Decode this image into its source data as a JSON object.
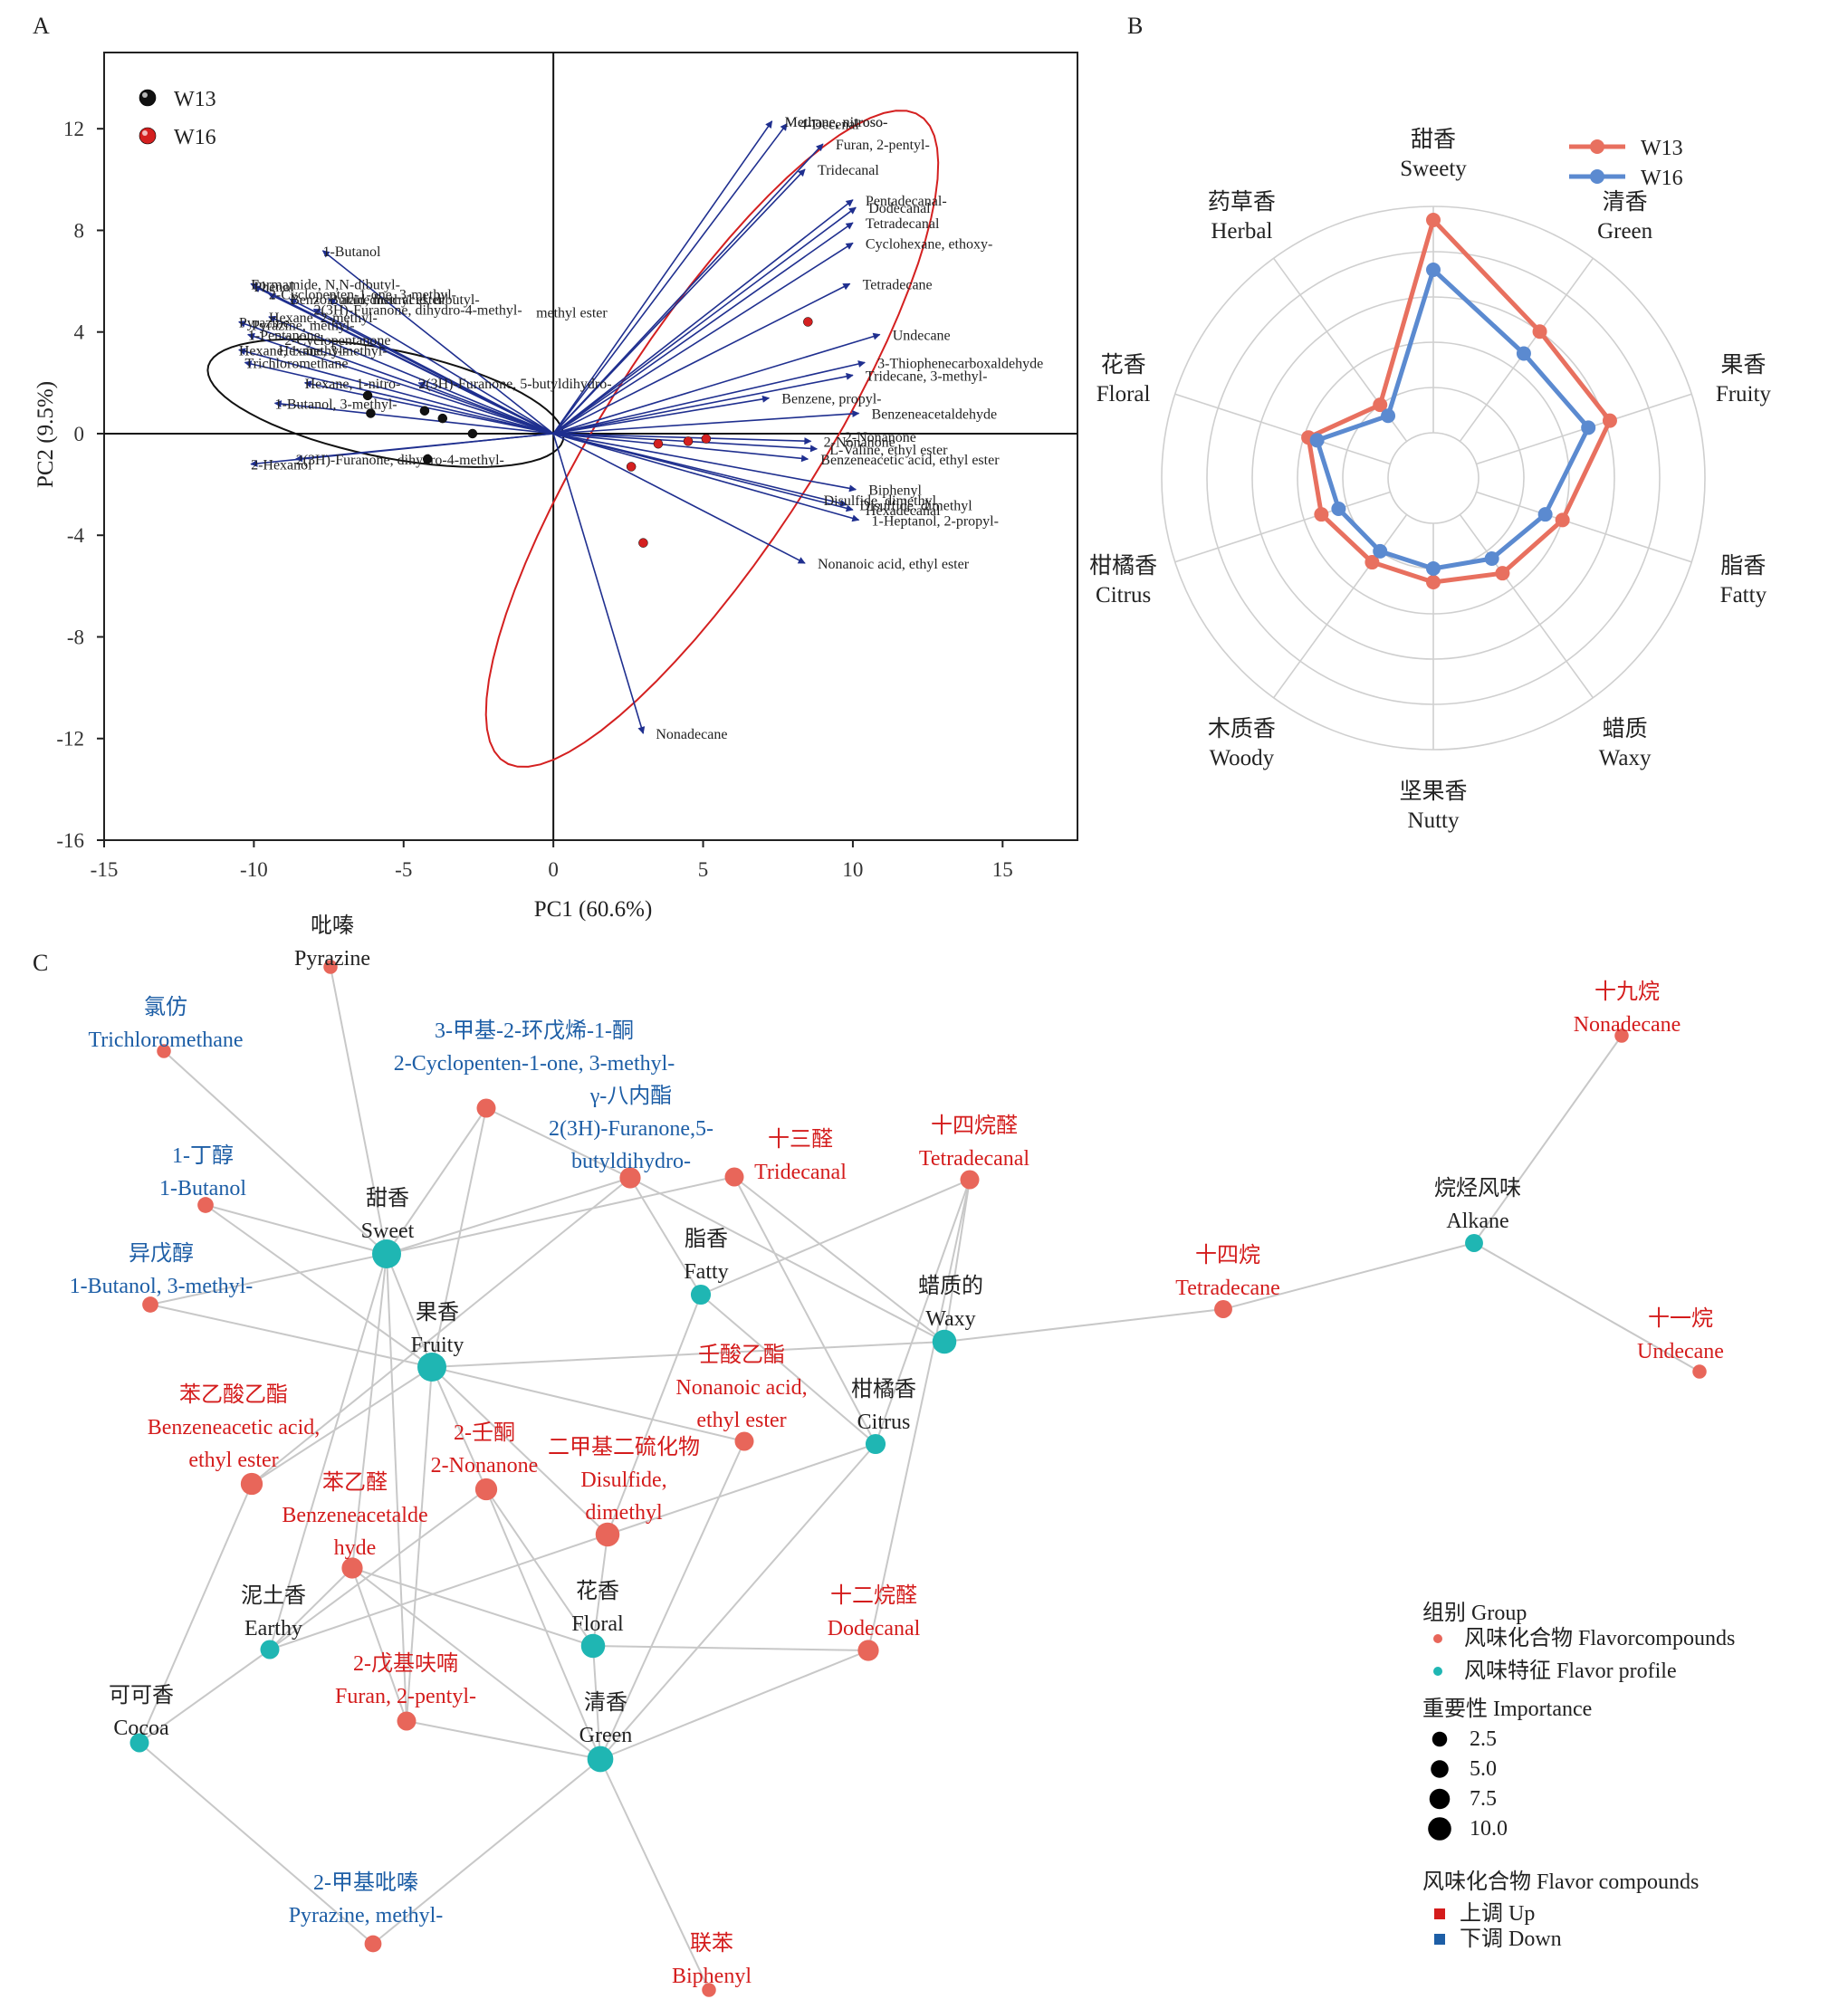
{
  "panels": {
    "a": "A",
    "b": "B",
    "c": "C"
  },
  "chart_data": [
    {
      "type": "scatter",
      "subtype": "pca-biplot",
      "xlabel": "PC1 (60.6%)",
      "ylabel": "PC2 (9.5%)",
      "xlim": [
        -15,
        17.5
      ],
      "ylim": [
        -16,
        15
      ],
      "xticks": [
        -15,
        -10,
        -5,
        0,
        5,
        10,
        15
      ],
      "yticks": [
        -16,
        -12,
        -8,
        -4,
        0,
        4,
        8,
        12
      ],
      "legend": [
        {
          "name": "W13",
          "color": "#111111"
        },
        {
          "name": "W16",
          "color": "#d42020"
        }
      ],
      "series": [
        {
          "name": "W13",
          "points": [
            [
              -6.2,
              1.5
            ],
            [
              -6.1,
              0.8
            ],
            [
              -4.3,
              0.9
            ],
            [
              -3.7,
              0.6
            ],
            [
              -2.7,
              0.0
            ],
            [
              -4.2,
              -1.0
            ]
          ]
        },
        {
          "name": "W16",
          "points": [
            [
              8.5,
              4.4
            ],
            [
              3.5,
              -0.4
            ],
            [
              4.5,
              -0.3
            ],
            [
              5.1,
              -0.2
            ],
            [
              2.6,
              -1.3
            ],
            [
              3.0,
              -4.3
            ]
          ]
        }
      ],
      "vectors": [
        {
          "label": "Methane, nitroso-",
          "x": 7.3,
          "y": 12.3
        },
        {
          "label": "4-Decenal",
          "x": 7.8,
          "y": 12.2
        },
        {
          "label": "Furan, 2-pentyl-",
          "x": 9.0,
          "y": 11.4
        },
        {
          "label": "Tridecanal",
          "x": 8.4,
          "y": 10.4
        },
        {
          "label": "Pentadecanal-",
          "x": 10.0,
          "y": 9.2
        },
        {
          "label": "Dodecanal",
          "x": 10.1,
          "y": 8.9
        },
        {
          "label": "Tetradecanal",
          "x": 10.0,
          "y": 8.3
        },
        {
          "label": "Cyclohexane, ethoxy-",
          "x": 10.0,
          "y": 7.5
        },
        {
          "label": "Tetradecane",
          "x": 9.9,
          "y": 5.9
        },
        {
          "label": "Undecane",
          "x": 10.9,
          "y": 3.9
        },
        {
          "label": "3-Thiophenecarboxaldehyde",
          "x": 10.4,
          "y": 2.8
        },
        {
          "label": "Tridecane, 3-methyl-",
          "x": 10.0,
          "y": 2.3
        },
        {
          "label": "Benzene, propyl-",
          "x": 7.2,
          "y": 1.4
        },
        {
          "label": "Benzeneacetaldehyde",
          "x": 10.2,
          "y": 0.8
        },
        {
          "label": "2-Nonanone",
          "x": 8.6,
          "y": -0.3
        },
        {
          "label": "L-Valine, ethyl ester",
          "x": 8.8,
          "y": -0.6
        },
        {
          "label": "Benzeneacetic acid, ethyl ester",
          "x": 8.5,
          "y": -1.0
        },
        {
          "label": "Biphenyl",
          "x": 10.1,
          "y": -2.2
        },
        {
          "label": "Disulfide, dimethyl",
          "x": 9.8,
          "y": -2.8
        },
        {
          "label": "Hexadecanal",
          "x": 10.0,
          "y": -3.0
        },
        {
          "label": "1-Heptanol, 2-propyl-",
          "x": 10.2,
          "y": -3.4
        },
        {
          "label": "Nonanoic acid, ethyl ester",
          "x": 8.4,
          "y": -5.1
        },
        {
          "label": "Nonadecane",
          "x": 3.0,
          "y": -11.8
        },
        {
          "label": "1-Butanol",
          "x": -7.7,
          "y": 7.2
        },
        {
          "label": "Formamide, N,N-dibutyl-",
          "x": -10.1,
          "y": 5.9
        },
        {
          "label": "Phenol",
          "x": -10.0,
          "y": 5.8
        },
        {
          "label": "2-Cyclopenten-1-one, 3-methyl-",
          "x": -9.5,
          "y": 5.5
        },
        {
          "label": "Benzoic acid, methyl ester",
          "x": -8.8,
          "y": 5.3
        },
        {
          "label": "Butanedioic acid, dibutyl-",
          "x": -7.5,
          "y": 5.3
        },
        {
          "label": "2(3H)-Furanone, dihydro-4-methyl-",
          "x": -8.0,
          "y": 4.9
        },
        {
          "label": "Hexane, 2-methyl-",
          "x": -9.5,
          "y": 4.6
        },
        {
          "label": "Pyrazine",
          "x": -10.5,
          "y": 4.4
        },
        {
          "label": "1-Pentanone",
          "x": -10.2,
          "y": 3.9
        },
        {
          "label": "Hexane, 1-methyl-",
          "x": -10.5,
          "y": 3.3
        },
        {
          "label": "Trichloromethane",
          "x": -10.3,
          "y": 2.8
        },
        {
          "label": "2(3H)-Furanone, 5-butyldihydro-",
          "x": -4.5,
          "y": 2.0
        },
        {
          "label": "Hexane, 1-nitro-",
          "x": -8.3,
          "y": 2.0
        },
        {
          "label": "1-Butanol, 3-methyl-",
          "x": -9.3,
          "y": 1.2
        },
        {
          "label": "2-Hexanol",
          "x": -10.1,
          "y": -1.2
        },
        {
          "label": "2(3H)-Furanone, dihydro-4-methyl-",
          "x": -8.6,
          "y": -1.0
        }
      ],
      "vector_text_overlays": [
        {
          "text": "Pyrazine, methyl-",
          "x": -10.5,
          "y": 4.3
        },
        {
          "text": "Hexane, 3-methyl-",
          "x": -9.6,
          "y": 3.3
        },
        {
          "text": "2-Cyclopentanone",
          "x": -9.4,
          "y": 3.7
        },
        {
          "text": "methyl ester",
          "x": -1.0,
          "y": 4.8
        },
        {
          "text": "Methane, nitroso-",
          "x": 7.3,
          "y": 12.3
        },
        {
          "text": "2-Nonanone",
          "x": 9.3,
          "y": -0.1
        },
        {
          "text": "Disulfide, dimethyl",
          "x": 8.6,
          "y": -2.6
        }
      ]
    },
    {
      "type": "radar",
      "axes": [
        {
          "zh": "甜香",
          "en": "Sweety"
        },
        {
          "zh": "清香",
          "en": "Green"
        },
        {
          "zh": "果香",
          "en": "Fruity"
        },
        {
          "zh": "脂香",
          "en": "Fatty"
        },
        {
          "zh": "蜡质",
          "en": "Waxy"
        },
        {
          "zh": "坚果香",
          "en": "Nutty"
        },
        {
          "zh": "木质香",
          "en": "Woody"
        },
        {
          "zh": "柑橘香",
          "en": "Citrus"
        },
        {
          "zh": "花香",
          "en": "Floral"
        },
        {
          "zh": "药草香",
          "en": "Herbal"
        }
      ],
      "range": [
        0,
        6
      ],
      "rings": 6,
      "series": [
        {
          "name": "W13",
          "color": "#e8705f",
          "values": [
            5.7,
            4.0,
            4.1,
            3.0,
            2.6,
            2.3,
            2.3,
            2.6,
            2.9,
            2.0
          ]
        },
        {
          "name": "W16",
          "color": "#5b8ad0",
          "values": [
            4.6,
            3.4,
            3.6,
            2.6,
            2.2,
            2.0,
            2.0,
            2.2,
            2.7,
            1.7
          ]
        }
      ]
    },
    {
      "type": "network",
      "legend": {
        "group_title": "组别 Group",
        "group_items": [
          {
            "label": "风味化合物 Flavorcompounds",
            "color": "#e8665a"
          },
          {
            "label": "风味特征 Flavor profile",
            "color": "#1fb6b3"
          }
        ],
        "importance_title": "重要性 Importance",
        "importance_items": [
          2.5,
          5.0,
          7.5,
          10.0
        ],
        "importance_labels": [
          "2.5",
          "5.0",
          "7.5",
          "10.0"
        ],
        "regulation_title": "风味化合物 Flavor compounds",
        "regulation_items": [
          {
            "label": "上调 Up",
            "color": "#d41c1c"
          },
          {
            "label": "下调 Down",
            "color": "#1d5ea6"
          }
        ]
      },
      "nodes": [
        {
          "id": "sweet",
          "zh": "甜香",
          "en": "Sweet",
          "group": "profile",
          "importance": 10.0
        },
        {
          "id": "fruity",
          "zh": "果香",
          "en": "Fruity",
          "group": "profile",
          "importance": 10.0
        },
        {
          "id": "fatty",
          "zh": "脂香",
          "en": "Fatty",
          "group": "profile",
          "importance": 5.5
        },
        {
          "id": "waxy",
          "zh": "蜡质的",
          "en": "Waxy",
          "group": "profile",
          "importance": 7.5
        },
        {
          "id": "citrus",
          "zh": "柑橘香",
          "en": "Citrus",
          "group": "profile",
          "importance": 5.5
        },
        {
          "id": "earthy",
          "zh": "泥土香",
          "en": "Earthy",
          "group": "profile",
          "importance": 5.0
        },
        {
          "id": "floral",
          "zh": "花香",
          "en": "Floral",
          "group": "profile",
          "importance": 7.5
        },
        {
          "id": "green",
          "zh": "清香",
          "en": "Green",
          "group": "profile",
          "importance": 8.5
        },
        {
          "id": "cocoa",
          "zh": "可可香",
          "en": "Cocoa",
          "group": "profile",
          "importance": 5.0
        },
        {
          "id": "alkane",
          "zh": "烷烃风味",
          "en": "Alkane",
          "group": "profile",
          "importance": 4.5
        },
        {
          "id": "pyrazine",
          "zh": "吡嗪",
          "en": "Pyrazine",
          "group": "compound",
          "regulation": "none",
          "importance": 2.5
        },
        {
          "id": "trichloromethane",
          "zh": "氯仿",
          "en": "Trichloromethane",
          "group": "compound",
          "regulation": "down",
          "importance": 2.5
        },
        {
          "id": "cyclopentenone",
          "zh": "3-甲基-2-环戊烯-1-酮",
          "en": "2-Cyclopenten-1-one, 3-methyl-",
          "group": "compound",
          "regulation": "down",
          "importance": 5.0
        },
        {
          "id": "octalactone",
          "zh": "γ-八内酯",
          "en": "2(3H)-Furanone,5-butyldihydro-",
          "group": "compound",
          "regulation": "down",
          "importance": 6.0
        },
        {
          "id": "butanol",
          "zh": "1-丁醇",
          "en": "1-Butanol",
          "group": "compound",
          "regulation": "down",
          "importance": 3.5
        },
        {
          "id": "isoamyl",
          "zh": "异戊醇",
          "en": "1-Butanol, 3-methyl-",
          "group": "compound",
          "regulation": "down",
          "importance": 3.5
        },
        {
          "id": "tridecanal",
          "zh": "十三醛",
          "en": "Tridecanal",
          "group": "compound",
          "regulation": "up",
          "importance": 5.0
        },
        {
          "id": "tetradecanal",
          "zh": "十四烷醛",
          "en": "Tetradecanal",
          "group": "compound",
          "regulation": "up",
          "importance": 5.0
        },
        {
          "id": "nonadecane",
          "zh": "十九烷",
          "en": "Nonadecane",
          "group": "compound",
          "regulation": "up",
          "importance": 2.5
        },
        {
          "id": "tetradecane",
          "zh": "十四烷",
          "en": "Tetradecane",
          "group": "compound",
          "regulation": "up",
          "importance": 4.5
        },
        {
          "id": "undecane",
          "zh": "十一烷",
          "en": "Undecane",
          "group": "compound",
          "regulation": "up",
          "importance": 2.5
        },
        {
          "id": "nonanoate",
          "zh": "壬酸乙酯",
          "en": "Nonanoic acid, ethyl ester",
          "group": "compound",
          "regulation": "up",
          "importance": 5.0
        },
        {
          "id": "phenylacetate",
          "zh": "苯乙酸乙酯",
          "en": "Benzeneacetic acid, ethyl ester",
          "group": "compound",
          "regulation": "up",
          "importance": 6.5
        },
        {
          "id": "nonanone",
          "zh": "2-壬酮",
          "en": "2-Nonanone",
          "group": "compound",
          "regulation": "up",
          "importance": 6.5
        },
        {
          "id": "dmds",
          "zh": "二甲基二硫化物",
          "en": "Disulfide, dimethyl",
          "group": "compound",
          "regulation": "up",
          "importance": 7.5
        },
        {
          "id": "phenylacetaldehyde",
          "zh": "苯乙醛",
          "en": "Benzeneacetaldehyde",
          "group": "compound",
          "regulation": "up",
          "importance": 6.0
        },
        {
          "id": "dodecanal",
          "zh": "十二烷醛",
          "en": "Dodecanal",
          "group": "compound",
          "regulation": "up",
          "importance": 6.0
        },
        {
          "id": "pentylfuran",
          "zh": "2-戊基呋喃",
          "en": "Furan, 2-pentyl-",
          "group": "compound",
          "regulation": "up",
          "importance": 5.0
        },
        {
          "id": "methylpyrazine",
          "zh": "2-甲基吡嗪",
          "en": "Pyrazine, methyl-",
          "group": "compound",
          "regulation": "down",
          "importance": 4.0
        },
        {
          "id": "biphenyl",
          "zh": "联苯",
          "en": "Biphenyl",
          "group": "compound",
          "regulation": "up",
          "importance": 2.5
        }
      ],
      "edges": [
        [
          "pyrazine",
          "sweet"
        ],
        [
          "trichloromethane",
          "sweet"
        ],
        [
          "butanol",
          "sweet"
        ],
        [
          "isoamyl",
          "sweet"
        ],
        [
          "isoamyl",
          "fruity"
        ],
        [
          "butanol",
          "fruity"
        ],
        [
          "cyclopentenone",
          "sweet"
        ],
        [
          "cyclopentenone",
          "fruity"
        ],
        [
          "cyclopentenone",
          "octalactone"
        ],
        [
          "octalactone",
          "sweet"
        ],
        [
          "octalactone",
          "fatty"
        ],
        [
          "octalactone",
          "waxy"
        ],
        [
          "octalactone",
          "phenylacetate"
        ],
        [
          "tridecanal",
          "sweet"
        ],
        [
          "tridecanal",
          "waxy"
        ],
        [
          "tridecanal",
          "citrus"
        ],
        [
          "tetradecanal",
          "waxy"
        ],
        [
          "tetradecanal",
          "fatty"
        ],
        [
          "tetradecanal",
          "citrus"
        ],
        [
          "tetradecanal",
          "dodecanal"
        ],
        [
          "waxy",
          "fruity"
        ],
        [
          "waxy",
          "tetradecane"
        ],
        [
          "tetradecane",
          "alkane"
        ],
        [
          "alkane",
          "nonadecane"
        ],
        [
          "alkane",
          "undecane"
        ],
        [
          "sweet",
          "fruity"
        ],
        [
          "sweet",
          "phenylacetaldehyde"
        ],
        [
          "sweet",
          "earthy"
        ],
        [
          "fruity",
          "nonanoate"
        ],
        [
          "fruity",
          "phenylacetate"
        ],
        [
          "fruity",
          "nonanone"
        ],
        [
          "fruity",
          "pentylfuran"
        ],
        [
          "fruity",
          "dmds"
        ],
        [
          "fatty",
          "dmds"
        ],
        [
          "nonanoate",
          "green"
        ],
        [
          "phenylacetate",
          "cocoa"
        ],
        [
          "nonanone",
          "earthy"
        ],
        [
          "nonanone",
          "green"
        ],
        [
          "nonanone",
          "floral"
        ],
        [
          "dmds",
          "floral"
        ],
        [
          "dmds",
          "earthy"
        ],
        [
          "citrus",
          "dmds"
        ],
        [
          "citrus",
          "green"
        ],
        [
          "phenylacetaldehyde",
          "floral"
        ],
        [
          "phenylacetaldehyde",
          "pentylfuran"
        ],
        [
          "phenylacetaldehyde",
          "green"
        ],
        [
          "phenylacetaldehyde",
          "earthy"
        ],
        [
          "earthy",
          "cocoa"
        ],
        [
          "floral",
          "dodecanal"
        ],
        [
          "floral",
          "green"
        ],
        [
          "green",
          "dodecanal"
        ],
        [
          "pentylfuran",
          "green"
        ],
        [
          "green",
          "methylpyrazine"
        ],
        [
          "cocoa",
          "methylpyrazine"
        ],
        [
          "green",
          "biphenyl"
        ],
        [
          "citrus",
          "fatty"
        ],
        [
          "sweet",
          "pentylfuran"
        ]
      ]
    }
  ]
}
